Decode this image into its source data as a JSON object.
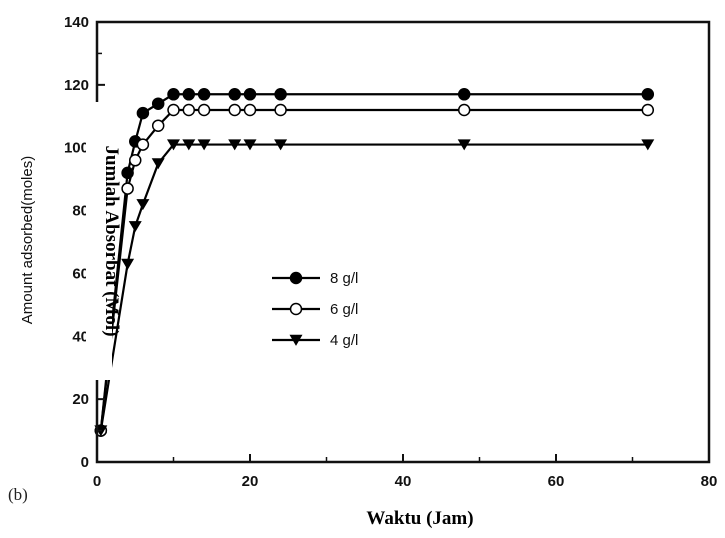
{
  "chart_data": {
    "type": "line",
    "panel_label": "(b)",
    "xlabel": "Waktu (Jam)",
    "ylabel_original": "Amount adsorbed(moles)",
    "ylabel_overlay": "Jumlah Absorbat (Mol)",
    "xlim": [
      0,
      80
    ],
    "ylim": [
      0,
      140
    ],
    "xticks": [
      0,
      20,
      40,
      60,
      80
    ],
    "yticks": [
      0,
      20,
      40,
      60,
      80,
      100,
      120,
      140
    ],
    "grid": false,
    "legend_position": "center-left",
    "series": [
      {
        "name": "8 g/l",
        "marker": "filled-circle",
        "color": "#000000",
        "x": [
          0.5,
          4,
          5,
          6,
          8,
          10,
          12,
          14,
          18,
          20,
          24,
          48,
          72
        ],
        "y": [
          10,
          92,
          102,
          111,
          114,
          117,
          117,
          117,
          117,
          117,
          117,
          117,
          117
        ]
      },
      {
        "name": "6 g/l",
        "marker": "open-circle",
        "color": "#000000",
        "x": [
          0.5,
          4,
          5,
          6,
          8,
          10,
          12,
          14,
          18,
          20,
          24,
          48,
          72
        ],
        "y": [
          10,
          87,
          96,
          101,
          107,
          112,
          112,
          112,
          112,
          112,
          112,
          112,
          112
        ]
      },
      {
        "name": "4 g/l",
        "marker": "down-triangle",
        "color": "#000000",
        "x": [
          0.5,
          4,
          5,
          6,
          8,
          10,
          12,
          14,
          18,
          20,
          24,
          48,
          72
        ],
        "y": [
          10,
          63,
          75,
          82,
          95,
          101,
          101,
          101,
          101,
          101,
          101,
          101,
          101
        ]
      }
    ]
  }
}
